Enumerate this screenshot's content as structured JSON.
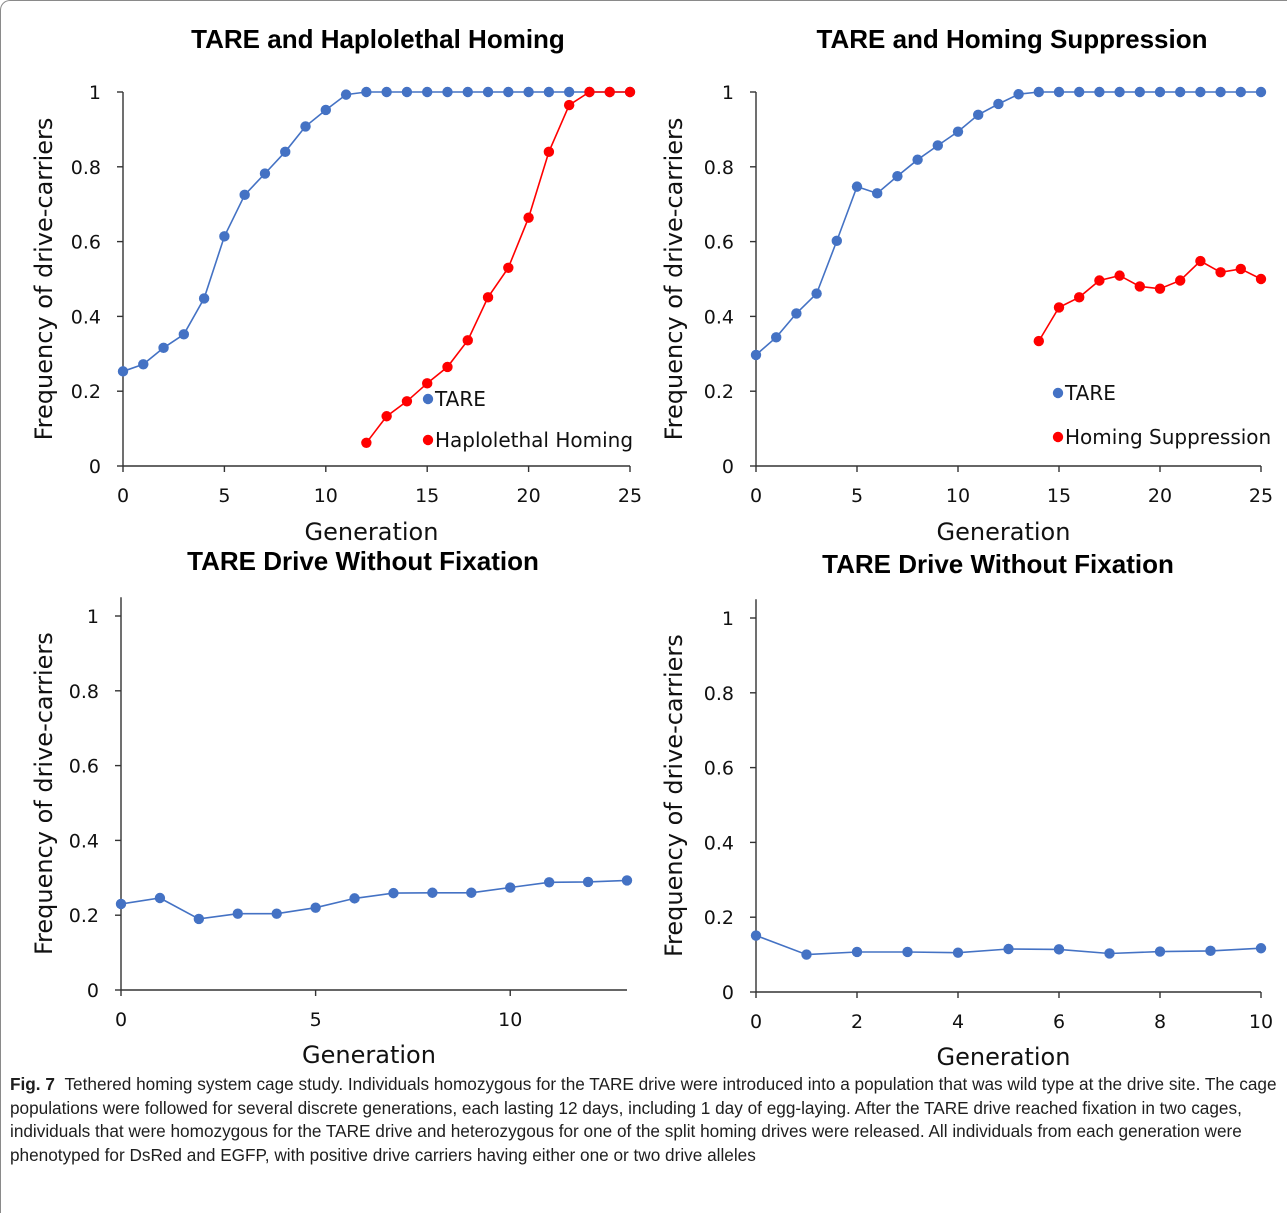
{
  "colors": {
    "tare": "#4472C4",
    "homing": "#FF0000",
    "axis": "#333333"
  },
  "chart_data": [
    {
      "type": "line",
      "title": "TARE and Haplolethal Homing",
      "xlabel": "Generation",
      "ylabel": "Frequency of drive-carriers",
      "xlim": [
        0,
        25
      ],
      "ylim": [
        0,
        1
      ],
      "xticks": [
        "0",
        "5",
        "10",
        "15",
        "20",
        "25"
      ],
      "yticks": [
        "0",
        "0.2",
        "0.4",
        "0.6",
        "0.8",
        "1"
      ],
      "legend_position": "inside-bottom-right",
      "series": [
        {
          "name": "TARE",
          "color": "#4472C4",
          "x": [
            0,
            1,
            2,
            3,
            4,
            5,
            6,
            7,
            8,
            9,
            10,
            11,
            12,
            13,
            14,
            15,
            16,
            17,
            18,
            19,
            20,
            21,
            22,
            23,
            24,
            25
          ],
          "y": [
            0.253,
            0.272,
            0.316,
            0.352,
            0.448,
            0.614,
            0.725,
            0.782,
            0.84,
            0.908,
            0.952,
            0.993,
            1,
            1,
            1,
            1,
            1,
            1,
            1,
            1,
            1,
            1,
            1,
            1,
            1,
            1
          ]
        },
        {
          "name": "Haplolethal Homing",
          "color": "#FF0000",
          "x": [
            12,
            13,
            14,
            15,
            16,
            17,
            18,
            19,
            20,
            21,
            22,
            23,
            24,
            25
          ],
          "y": [
            0.062,
            0.133,
            0.173,
            0.221,
            0.265,
            0.336,
            0.451,
            0.53,
            0.664,
            0.84,
            0.965,
            1,
            1,
            1
          ]
        }
      ]
    },
    {
      "type": "line",
      "title": "TARE and Homing Suppression",
      "xlabel": "Generation",
      "ylabel": "Frequency of drive-carriers",
      "xlim": [
        0,
        25
      ],
      "ylim": [
        0,
        1
      ],
      "xticks": [
        "0",
        "5",
        "10",
        "15",
        "20",
        "25"
      ],
      "yticks": [
        "0",
        "0.2",
        "0.4",
        "0.6",
        "0.8",
        "1"
      ],
      "legend_position": "inside-bottom-right",
      "series": [
        {
          "name": "TARE",
          "color": "#4472C4",
          "x": [
            0,
            1,
            2,
            3,
            4,
            5,
            6,
            7,
            8,
            9,
            10,
            11,
            12,
            13,
            14,
            15,
            16,
            17,
            18,
            19,
            20,
            21,
            22,
            23,
            24,
            25
          ],
          "y": [
            0.297,
            0.344,
            0.408,
            0.461,
            0.602,
            0.747,
            0.729,
            0.775,
            0.819,
            0.857,
            0.894,
            0.939,
            0.968,
            0.994,
            1,
            1,
            1,
            1,
            1,
            1,
            1,
            1,
            1,
            1,
            1,
            1
          ]
        },
        {
          "name": "Homing Suppression",
          "color": "#FF0000",
          "x": [
            14,
            15,
            16,
            17,
            18,
            19,
            20,
            21,
            22,
            23,
            24,
            25
          ],
          "y": [
            0.334,
            0.424,
            0.451,
            0.496,
            0.509,
            0.48,
            0.474,
            0.496,
            0.548,
            0.518,
            0.527,
            0.5
          ]
        }
      ]
    },
    {
      "type": "line",
      "title": "TARE Drive Without Fixation",
      "xlabel": "Generation",
      "ylabel": "Frequency of drive-carriers",
      "xlim": [
        0,
        13
      ],
      "ylim": [
        0,
        1.05
      ],
      "xticks": [
        "0",
        "5",
        "10"
      ],
      "yticks": [
        "0",
        "0.2",
        "0.4",
        "0.6",
        "0.8",
        "1"
      ],
      "series": [
        {
          "color": "#4472C4",
          "x": [
            0,
            1,
            2,
            3,
            4,
            5,
            6,
            7,
            8,
            9,
            10,
            11,
            12,
            13
          ],
          "y": [
            0.23,
            0.246,
            0.19,
            0.204,
            0.204,
            0.22,
            0.245,
            0.259,
            0.26,
            0.26,
            0.274,
            0.288,
            0.289,
            0.293
          ]
        }
      ]
    },
    {
      "type": "line",
      "title": "TARE Drive Without Fixation",
      "xlabel": "Generation",
      "ylabel": "Frequency of drive-carriers",
      "xlim": [
        0,
        10
      ],
      "ylim": [
        0,
        1.05
      ],
      "xticks": [
        "0",
        "2",
        "4",
        "6",
        "8",
        "10"
      ],
      "yticks": [
        "0",
        "0.2",
        "0.4",
        "0.6",
        "0.8",
        "1"
      ],
      "series": [
        {
          "color": "#4472C4",
          "x": [
            0,
            1,
            2,
            3,
            4,
            5,
            6,
            7,
            8,
            9,
            10
          ],
          "y": [
            0.151,
            0.1,
            0.107,
            0.107,
            0.105,
            0.115,
            0.114,
            0.103,
            0.108,
            0.11,
            0.117
          ]
        }
      ]
    }
  ],
  "caption": {
    "label": "Fig. 7",
    "text": "Tethered homing system cage study. Individuals homozygous for the TARE drive were introduced into a population that was wild type at the drive site. The cage populations were followed for several discrete generations, each lasting 12 days, including 1 day of egg-laying. After the TARE drive reached fixation in two cages, individuals that were homozygous for the TARE drive and heterozygous for one of the split homing drives were released. All individuals from each generation were phenotyped for DsRed and EGFP, with positive drive carriers having either one or two drive alleles"
  }
}
